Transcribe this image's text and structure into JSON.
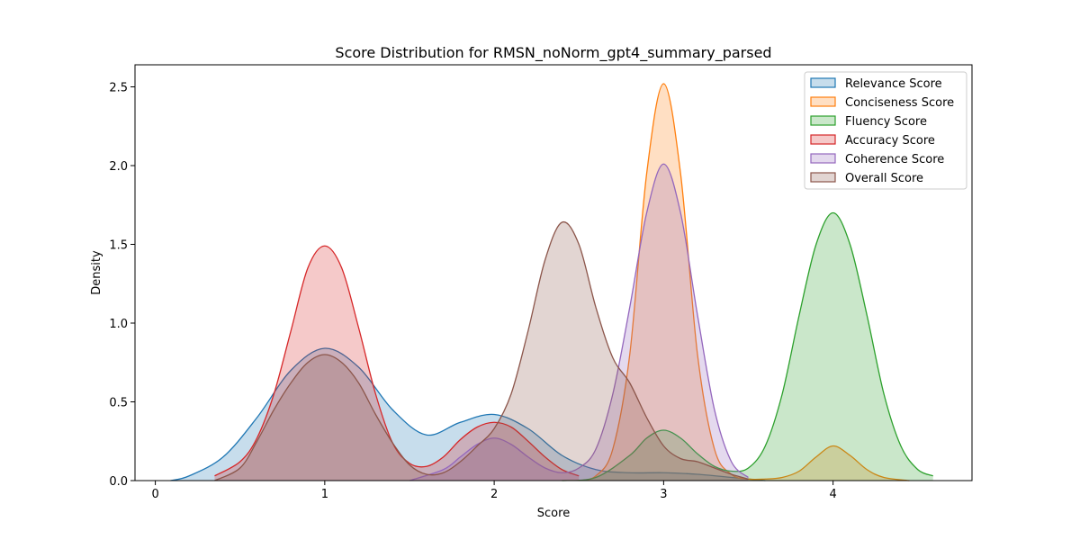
{
  "chart_data": {
    "type": "area",
    "title": "Score Distribution for RMSN_noNorm_gpt4_summary_parsed",
    "xlabel": "Score",
    "ylabel": "Density",
    "xlim": [
      -0.12,
      4.82
    ],
    "ylim": [
      0,
      2.64
    ],
    "xticks": [
      0,
      1,
      2,
      3,
      4
    ],
    "yticks": [
      0.0,
      0.5,
      1.0,
      1.5,
      2.0,
      2.5
    ],
    "xtick_labels": [
      "0",
      "1",
      "2",
      "3",
      "4"
    ],
    "ytick_labels": [
      "0.0",
      "0.5",
      "1.0",
      "1.5",
      "2.0",
      "2.5"
    ],
    "grid": false,
    "legend_position": "top-right",
    "series": [
      {
        "name": "Relevance Score",
        "color": "#1f77b4",
        "x": [
          0.09,
          0.2,
          0.4,
          0.6,
          0.8,
          1.0,
          1.2,
          1.4,
          1.6,
          1.8,
          2.0,
          2.2,
          2.4,
          2.6,
          2.8,
          3.0,
          3.2,
          3.4,
          3.6
        ],
        "y": [
          0.0,
          0.03,
          0.15,
          0.4,
          0.7,
          0.84,
          0.72,
          0.45,
          0.29,
          0.37,
          0.42,
          0.33,
          0.16,
          0.07,
          0.05,
          0.05,
          0.04,
          0.02,
          0.0
        ]
      },
      {
        "name": "Conciseness Score",
        "color": "#ff7f0e",
        "x": [
          2.5,
          2.6,
          2.7,
          2.8,
          2.9,
          3.0,
          3.1,
          3.2,
          3.3,
          3.4,
          3.5,
          3.6,
          3.7,
          3.8,
          3.9,
          4.0,
          4.1,
          4.2,
          4.3,
          4.45
        ],
        "y": [
          0.0,
          0.03,
          0.2,
          0.8,
          1.95,
          2.52,
          1.95,
          0.8,
          0.2,
          0.04,
          0.01,
          0.01,
          0.02,
          0.06,
          0.15,
          0.22,
          0.16,
          0.07,
          0.02,
          0.0
        ]
      },
      {
        "name": "Fluency Score",
        "color": "#2ca02c",
        "x": [
          2.4,
          2.6,
          2.8,
          2.9,
          3.0,
          3.1,
          3.2,
          3.3,
          3.4,
          3.5,
          3.6,
          3.7,
          3.8,
          3.9,
          4.0,
          4.1,
          4.2,
          4.3,
          4.4,
          4.5,
          4.59
        ],
        "y": [
          0.0,
          0.02,
          0.16,
          0.27,
          0.32,
          0.27,
          0.17,
          0.09,
          0.06,
          0.08,
          0.22,
          0.55,
          1.05,
          1.5,
          1.7,
          1.5,
          1.05,
          0.55,
          0.22,
          0.07,
          0.03
        ]
      },
      {
        "name": "Accuracy Score",
        "color": "#d62728",
        "x": [
          0.35,
          0.5,
          0.6,
          0.7,
          0.8,
          0.9,
          1.0,
          1.1,
          1.2,
          1.3,
          1.4,
          1.5,
          1.6,
          1.7,
          1.8,
          1.9,
          2.0,
          2.1,
          2.2,
          2.3,
          2.4,
          2.5
        ],
        "y": [
          0.03,
          0.12,
          0.27,
          0.55,
          0.95,
          1.35,
          1.49,
          1.35,
          0.97,
          0.55,
          0.24,
          0.11,
          0.09,
          0.15,
          0.26,
          0.34,
          0.37,
          0.34,
          0.25,
          0.15,
          0.07,
          0.03
        ]
      },
      {
        "name": "Coherence Score",
        "color": "#9467bd",
        "x": [
          1.5,
          1.7,
          1.8,
          1.9,
          2.0,
          2.1,
          2.2,
          2.3,
          2.4,
          2.5,
          2.6,
          2.7,
          2.8,
          2.9,
          3.0,
          3.1,
          3.2,
          3.3,
          3.4,
          3.5
        ],
        "y": [
          0.0,
          0.07,
          0.15,
          0.23,
          0.27,
          0.23,
          0.15,
          0.08,
          0.05,
          0.08,
          0.2,
          0.55,
          1.1,
          1.7,
          2.01,
          1.7,
          1.05,
          0.45,
          0.12,
          0.02
        ]
      },
      {
        "name": "Overall Score",
        "color": "#8c564b",
        "x": [
          0.35,
          0.5,
          0.6,
          0.7,
          0.8,
          0.9,
          1.0,
          1.1,
          1.2,
          1.3,
          1.4,
          1.5,
          1.6,
          1.7,
          1.8,
          1.9,
          2.0,
          2.1,
          2.2,
          2.3,
          2.4,
          2.5,
          2.6,
          2.7,
          2.8,
          2.9,
          3.0,
          3.1,
          3.2,
          3.3,
          3.4,
          3.5
        ],
        "y": [
          0.0,
          0.08,
          0.25,
          0.45,
          0.62,
          0.75,
          0.8,
          0.75,
          0.62,
          0.42,
          0.24,
          0.1,
          0.04,
          0.05,
          0.12,
          0.22,
          0.33,
          0.55,
          0.95,
          1.4,
          1.64,
          1.5,
          1.1,
          0.78,
          0.62,
          0.4,
          0.22,
          0.14,
          0.12,
          0.08,
          0.04,
          0.01
        ]
      }
    ]
  }
}
